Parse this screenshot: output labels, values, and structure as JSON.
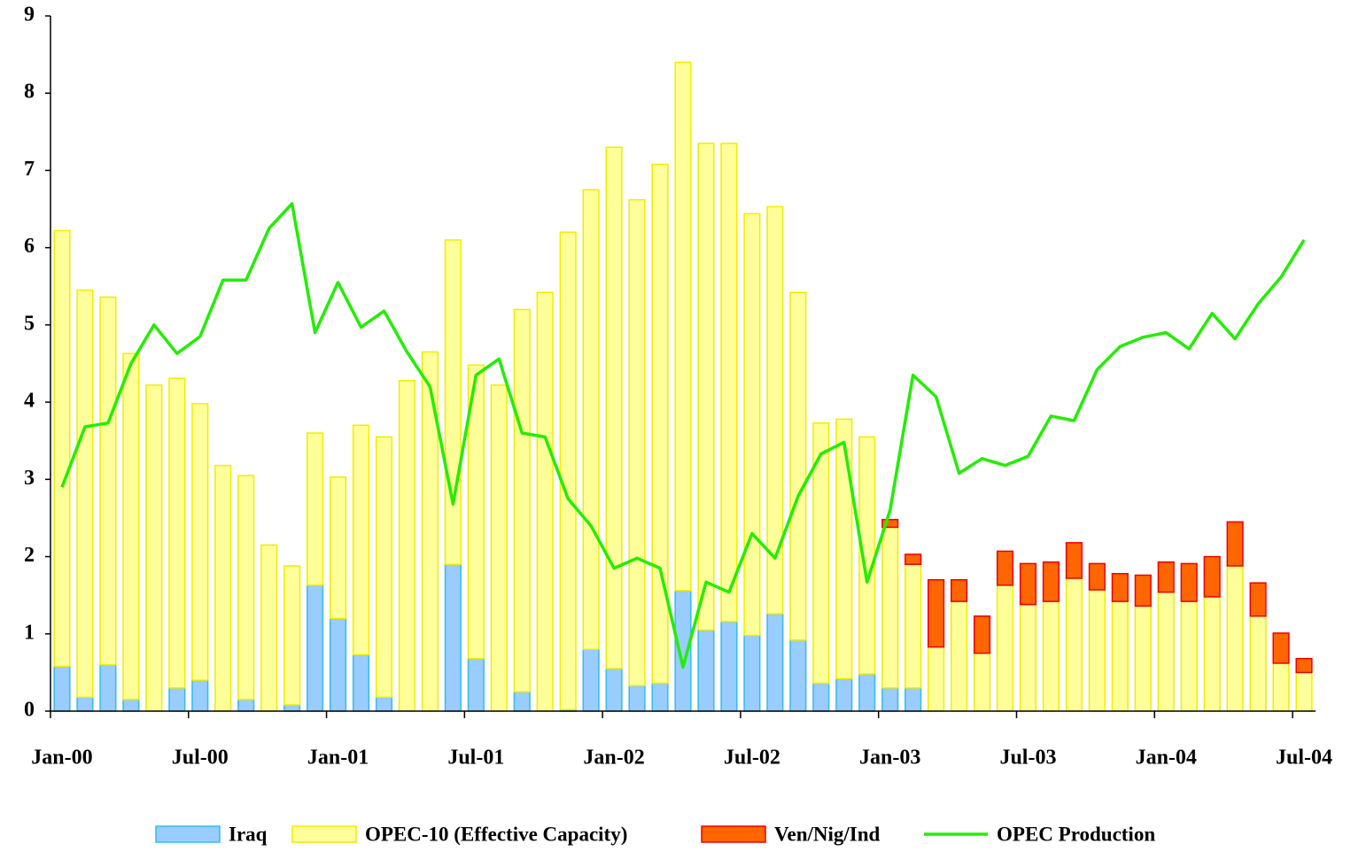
{
  "chart_data": {
    "type": "bar",
    "stacked": true,
    "legend": "bottom",
    "categories": [
      "Jan-00",
      null,
      null,
      null,
      null,
      null,
      "Jul-00",
      null,
      null,
      null,
      null,
      null,
      "Jan-01",
      null,
      null,
      null,
      null,
      null,
      "Jul-01",
      null,
      null,
      null,
      null,
      null,
      "Jan-02",
      null,
      null,
      null,
      null,
      null,
      "Jul-02",
      null,
      null,
      null,
      null,
      null,
      "Jan-03",
      null,
      null,
      null,
      null,
      null,
      "Jul-03",
      null,
      null,
      null,
      null,
      null,
      "Jan-04",
      null,
      null,
      null,
      null,
      null,
      "Jul-04"
    ],
    "ylim": [
      0,
      9
    ],
    "yticks": [
      0,
      1,
      2,
      3,
      4,
      5,
      6,
      7,
      8,
      9
    ],
    "series": [
      {
        "name": "Iraq",
        "color": "#99ccff",
        "stroke": "#33bbee",
        "values": [
          0.58,
          0.18,
          0.6,
          0.15,
          0,
          0.3,
          0.4,
          0,
          0.15,
          0,
          0.08,
          1.63,
          1.2,
          0.73,
          0.18,
          0,
          0,
          1.9,
          0.68,
          0,
          0.25,
          0,
          0.02,
          0.8,
          0.55,
          0.33,
          0.36,
          1.56,
          1.05,
          1.16,
          0.98,
          1.26,
          0.92,
          0.36,
          0.42,
          0.48,
          0.3,
          0.3,
          0,
          0,
          0,
          0,
          0,
          0,
          0,
          0,
          0,
          0,
          0,
          0,
          0,
          0,
          0,
          0,
          0
        ]
      },
      {
        "name": "OPEC-10 (Effective Capacity)",
        "color": "#ffff99",
        "stroke": "#eeee00",
        "values": [
          5.64,
          5.27,
          4.76,
          4.48,
          4.22,
          4.01,
          3.58,
          3.18,
          2.9,
          2.15,
          1.8,
          1.97,
          1.83,
          2.97,
          3.37,
          4.28,
          4.65,
          4.2,
          3.8,
          4.22,
          4.95,
          5.42,
          6.18,
          5.95,
          6.75,
          6.29,
          6.72,
          6.84,
          6.3,
          6.19,
          5.46,
          5.27,
          4.5,
          3.37,
          3.36,
          3.07,
          2.08,
          1.6,
          0.83,
          1.42,
          0.75,
          1.63,
          1.38,
          1.42,
          1.72,
          1.57,
          1.42,
          1.36,
          1.54,
          1.42,
          1.48,
          1.88,
          1.23,
          0.62,
          0.5
        ]
      },
      {
        "name": "Ven/Nig/Ind",
        "color": "#ff6600",
        "stroke": "#ee0000",
        "values": [
          0,
          0,
          0,
          0,
          0,
          0,
          0,
          0,
          0,
          0,
          0,
          0,
          0,
          0,
          0,
          0,
          0,
          0,
          0,
          0,
          0,
          0,
          0,
          0,
          0,
          0,
          0,
          0,
          0,
          0,
          0,
          0,
          0,
          0,
          0,
          0,
          0.1,
          0.13,
          0.87,
          0.28,
          0.48,
          0.44,
          0.53,
          0.51,
          0.46,
          0.34,
          0.36,
          0.4,
          0.39,
          0.49,
          0.52,
          0.57,
          0.43,
          0.39,
          0.18
        ]
      },
      {
        "name": "OPEC Production",
        "type": "line",
        "color": "#22ee00",
        "values": [
          2.9,
          3.68,
          3.73,
          4.5,
          5.0,
          4.63,
          4.85,
          5.58,
          5.58,
          6.25,
          6.57,
          4.9,
          5.55,
          4.97,
          5.18,
          4.65,
          4.2,
          2.68,
          4.35,
          4.56,
          3.6,
          3.55,
          2.75,
          2.4,
          1.85,
          1.98,
          1.85,
          0.57,
          1.67,
          1.54,
          2.3,
          1.98,
          2.78,
          3.33,
          3.48,
          1.67,
          2.6,
          4.35,
          4.07,
          3.08,
          3.27,
          3.18,
          3.3,
          3.82,
          3.76,
          4.42,
          4.72,
          4.84,
          4.9,
          4.69,
          5.15,
          4.82,
          5.27,
          5.62,
          6.1
        ]
      }
    ]
  }
}
